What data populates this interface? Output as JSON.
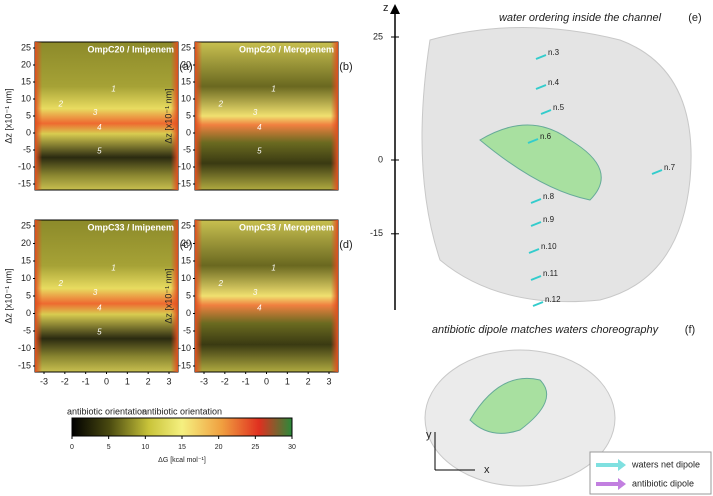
{
  "left_panels": {
    "y_axis_label": "Δz [x10⁻¹ nm]",
    "x_axis_label": "antibiotic orientation",
    "yticks": [
      25,
      20,
      15,
      10,
      5,
      0,
      -5,
      -10,
      -15
    ],
    "xticks": [
      -3,
      -2,
      -1,
      0,
      1,
      2,
      3
    ],
    "panels": [
      {
        "title": "OmpC20 / Imipenem",
        "letter": "(a)",
        "markers": [
          "1",
          "2",
          "3",
          "4",
          "5"
        ]
      },
      {
        "title": "OmpC20 / Meropenem",
        "letter": "(b)",
        "markers": [
          "1",
          "2",
          "3",
          "4",
          "5"
        ]
      },
      {
        "title": "OmpC33 / Imipenem",
        "letter": "(c)",
        "markers": [
          "1",
          "2",
          "3",
          "4",
          "5"
        ]
      },
      {
        "title": "OmpC33 / Meropenem",
        "letter": "(d)",
        "markers": [
          "1",
          "2",
          "3",
          "4"
        ]
      }
    ]
  },
  "colorbar": {
    "label": "ΔG [kcal mol⁻¹]",
    "ticks": [
      0,
      5,
      10,
      15,
      20,
      25,
      30
    ]
  },
  "panel_e": {
    "title": "water ordering inside the channel",
    "letter": "(e)",
    "axis": "z",
    "zticks": [
      25,
      0,
      -15
    ],
    "labels": [
      "n.3",
      "n.4",
      "n.5",
      "n.6",
      "n.7",
      "n.8",
      "n.9",
      "n.10",
      "n.11",
      "n.12"
    ]
  },
  "panel_f": {
    "title": "antibiotic dipole matches waters choreography",
    "letter": "(f)",
    "x_axis": "x",
    "y_axis": "y",
    "legend": [
      "waters net dipole",
      "antibiotic dipole"
    ]
  }
}
